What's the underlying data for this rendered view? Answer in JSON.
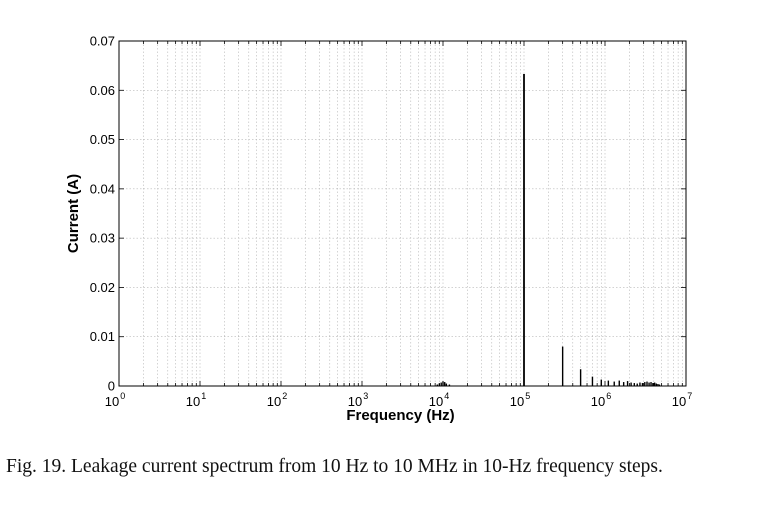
{
  "chart_data": {
    "type": "bar",
    "xlabel": "Frequency (Hz)",
    "ylabel": "Current (A)",
    "xscale": "log",
    "xlim": [
      1,
      10000000
    ],
    "ylim": [
      0,
      0.07
    ],
    "x_ticks": [
      {
        "base": "10",
        "exp": "0"
      },
      {
        "base": "10",
        "exp": "1"
      },
      {
        "base": "10",
        "exp": "2"
      },
      {
        "base": "10",
        "exp": "3"
      },
      {
        "base": "10",
        "exp": "4"
      },
      {
        "base": "10",
        "exp": "5"
      },
      {
        "base": "10",
        "exp": "6"
      },
      {
        "base": "10",
        "exp": "7"
      }
    ],
    "y_ticks": [
      "0",
      "0.01",
      "0.02",
      "0.03",
      "0.04",
      "0.05",
      "0.06",
      "0.07"
    ],
    "y_tick_values": [
      0,
      0.01,
      0.02,
      0.03,
      0.04,
      0.05,
      0.06,
      0.07
    ],
    "grid": true,
    "series": [
      {
        "x": [
          8500,
          9000,
          9500,
          10000,
          10500,
          11000,
          12000,
          100000,
          300000,
          500000,
          700000,
          900000,
          1100000,
          1300000,
          1500000,
          1700000,
          1900000,
          2100000,
          2300000,
          2500000,
          2700000,
          2900000,
          3100000,
          3300000,
          3500000,
          3700000,
          3900000,
          4100000,
          4300000,
          4500000,
          4700000
        ],
        "values": [
          0.0003,
          0.0005,
          0.0007,
          0.0009,
          0.0008,
          0.0005,
          0.0003,
          0.0633,
          0.008,
          0.0034,
          0.0019,
          0.0013,
          0.0011,
          0.0009,
          0.0011,
          0.0008,
          0.001,
          0.0007,
          0.0006,
          0.0005,
          0.0007,
          0.0006,
          0.0008,
          0.0009,
          0.0007,
          0.0008,
          0.0006,
          0.0007,
          0.0005,
          0.0004,
          0.0003
        ]
      }
    ]
  },
  "caption": "Fig. 19.   Leakage current spectrum from 10 Hz to 10 MHz in 10-Hz frequency steps."
}
